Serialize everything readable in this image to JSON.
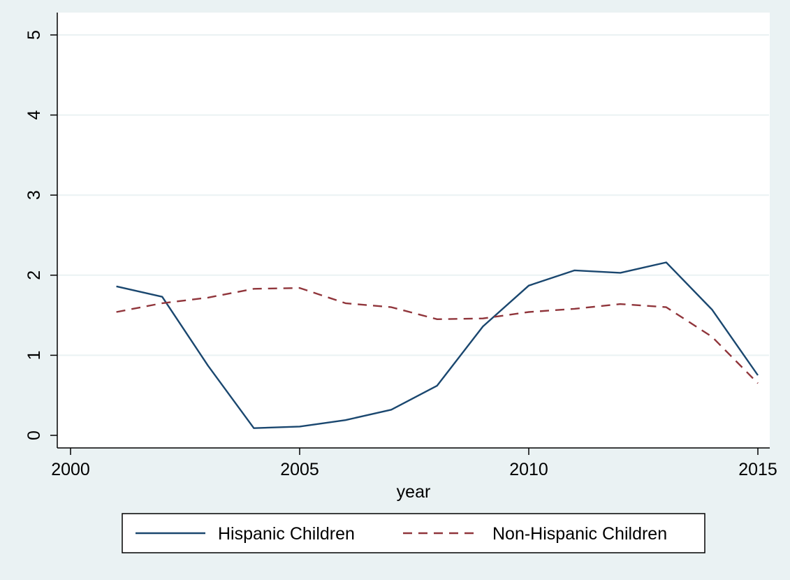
{
  "chart_data": {
    "type": "line",
    "title": "",
    "xlabel": "year",
    "ylabel": "",
    "xlim": [
      2000,
      2015
    ],
    "ylim": [
      0,
      5
    ],
    "xticks": [
      2000,
      2005,
      2010,
      2015
    ],
    "yticks": [
      0,
      1,
      2,
      3,
      4,
      5
    ],
    "grid": true,
    "legend_position": "bottom",
    "x": [
      2001,
      2002,
      2003,
      2004,
      2005,
      2006,
      2007,
      2008,
      2009,
      2010,
      2011,
      2012,
      2013,
      2014,
      2015
    ],
    "series": [
      {
        "name": "Hispanic Children",
        "color": "#1a476f",
        "dash": "solid",
        "values": [
          1.86,
          1.73,
          0.87,
          0.09,
          0.11,
          0.19,
          0.32,
          0.62,
          1.36,
          1.87,
          2.06,
          2.03,
          2.16,
          1.57,
          0.75
        ]
      },
      {
        "name": "Non-Hispanic Children",
        "color": "#90353b",
        "dash": "dashed",
        "values": [
          1.54,
          1.65,
          1.72,
          1.83,
          1.84,
          1.65,
          1.6,
          1.45,
          1.46,
          1.54,
          1.58,
          1.64,
          1.6,
          1.23,
          0.65
        ]
      }
    ],
    "colors": {
      "background": "#eaf2f3",
      "plot_area": "#ffffff",
      "grid": "#eaf2f3",
      "axis": "#000000"
    }
  }
}
